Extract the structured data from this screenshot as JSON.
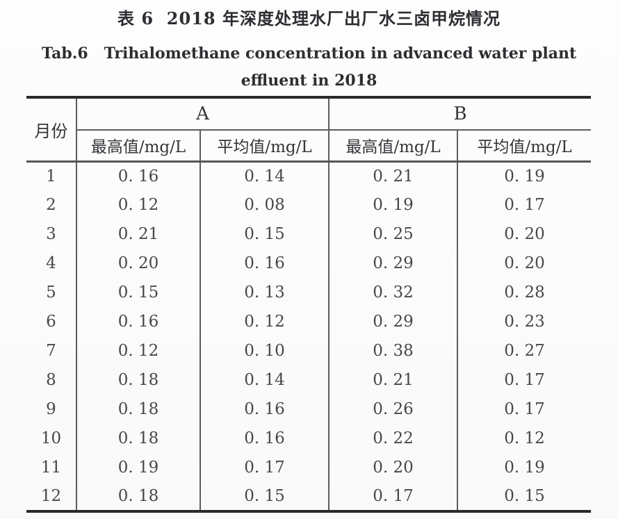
{
  "captions": {
    "zh": "表 6  2018 年深度处理水厂出厂水三卤甲烷情况",
    "en_line1": "Tab.6   Trihalomethane concentration in advanced water plant",
    "en_line2": "effluent in 2018"
  },
  "table": {
    "month_header": "月份",
    "group_a_label": "A",
    "group_b_label": "B",
    "sub_headers": {
      "a_max": "最高值/mg/L",
      "a_avg": "平均值/mg/L",
      "b_max": "最高值/mg/L",
      "b_avg": "平均值/mg/L"
    },
    "rows": [
      {
        "month": "1",
        "a_max": "0. 16",
        "a_avg": "0. 14",
        "b_max": "0. 21",
        "b_avg": "0. 19"
      },
      {
        "month": "2",
        "a_max": "0. 12",
        "a_avg": "0. 08",
        "b_max": "0. 19",
        "b_avg": "0. 17"
      },
      {
        "month": "3",
        "a_max": "0. 21",
        "a_avg": "0. 15",
        "b_max": "0. 25",
        "b_avg": "0. 20"
      },
      {
        "month": "4",
        "a_max": "0. 20",
        "a_avg": "0. 16",
        "b_max": "0. 29",
        "b_avg": "0. 20"
      },
      {
        "month": "5",
        "a_max": "0. 15",
        "a_avg": "0. 13",
        "b_max": "0. 32",
        "b_avg": "0. 28"
      },
      {
        "month": "6",
        "a_max": "0. 16",
        "a_avg": "0. 12",
        "b_max": "0. 29",
        "b_avg": "0. 23"
      },
      {
        "month": "7",
        "a_max": "0. 12",
        "a_avg": "0. 10",
        "b_max": "0. 38",
        "b_avg": "0. 27"
      },
      {
        "month": "8",
        "a_max": "0. 18",
        "a_avg": "0. 14",
        "b_max": "0. 21",
        "b_avg": "0. 17"
      },
      {
        "month": "9",
        "a_max": "0. 18",
        "a_avg": "0. 16",
        "b_max": "0. 26",
        "b_avg": "0. 17"
      },
      {
        "month": "10",
        "a_max": "0. 18",
        "a_avg": "0. 16",
        "b_max": "0. 22",
        "b_avg": "0. 12"
      },
      {
        "month": "11",
        "a_max": "0. 19",
        "a_avg": "0. 17",
        "b_max": "0. 20",
        "b_avg": "0. 19"
      },
      {
        "month": "12",
        "a_max": "0. 18",
        "a_avg": "0. 15",
        "b_max": "0. 17",
        "b_avg": "0. 15"
      }
    ]
  },
  "colors": {
    "background": "#fbfbfb",
    "text": "#3e3e44",
    "heavy_rule": "#2a2a2e",
    "light_rule": "#5c5c60"
  },
  "chart_data": {
    "type": "table",
    "title": "表 6  2018 年深度处理水厂出厂水三卤甲烷情况 / Tab.6 Trihalomethane concentration in advanced water plant effluent in 2018",
    "columns": [
      "月份",
      "A 最高值/mg/L",
      "A 平均值/mg/L",
      "B 最高值/mg/L",
      "B 平均值/mg/L"
    ],
    "x": [
      1,
      2,
      3,
      4,
      5,
      6,
      7,
      8,
      9,
      10,
      11,
      12
    ],
    "series": [
      {
        "name": "A 最高值/mg/L",
        "values": [
          0.16,
          0.12,
          0.21,
          0.2,
          0.15,
          0.16,
          0.12,
          0.18,
          0.18,
          0.18,
          0.19,
          0.18
        ]
      },
      {
        "name": "A 平均值/mg/L",
        "values": [
          0.14,
          0.08,
          0.15,
          0.16,
          0.13,
          0.12,
          0.1,
          0.14,
          0.16,
          0.16,
          0.17,
          0.15
        ]
      },
      {
        "name": "B 最高值/mg/L",
        "values": [
          0.21,
          0.19,
          0.25,
          0.29,
          0.32,
          0.29,
          0.38,
          0.21,
          0.26,
          0.22,
          0.2,
          0.17
        ]
      },
      {
        "name": "B 平均值/mg/L",
        "values": [
          0.19,
          0.17,
          0.2,
          0.2,
          0.28,
          0.23,
          0.27,
          0.17,
          0.17,
          0.12,
          0.19,
          0.15
        ]
      }
    ]
  }
}
